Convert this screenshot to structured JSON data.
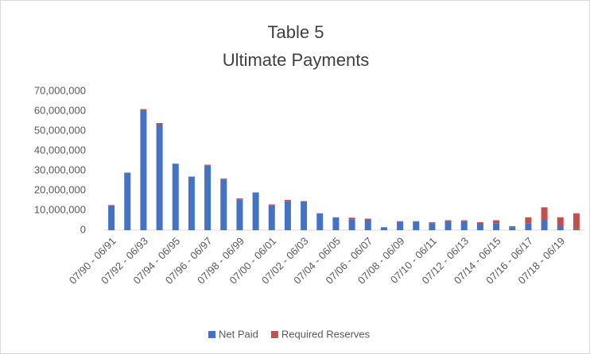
{
  "chart_data": {
    "type": "stacked_bar",
    "title": "Table 5",
    "subtitle": "Ultimate Payments",
    "categories": [
      "07/90 - 06/91",
      null,
      "07/92 - 06/93",
      null,
      "07/94 - 06/95",
      null,
      "07/96 - 06/97",
      null,
      "07/98 - 06/99",
      null,
      "07/00 - 06/01",
      null,
      "07/02 - 06/03",
      null,
      "07/04 - 06/05",
      null,
      "07/06 - 06/07",
      null,
      "07/08 - 06/09",
      null,
      "07/10 - 06/11",
      null,
      "07/12 - 06/13",
      null,
      "07/14 - 06/15",
      null,
      "07/16 - 06/17",
      null,
      "07/18 - 06/19",
      null
    ],
    "series": [
      {
        "name": "Net Paid",
        "color": "#4472c4",
        "values": [
          12500000,
          29000000,
          60000000,
          53000000,
          33500000,
          27000000,
          32500000,
          25500000,
          15500000,
          19000000,
          12500000,
          14500000,
          14500000,
          8500000,
          6500000,
          5500000,
          5000000,
          1500000,
          4000000,
          4000000,
          3500000,
          4000000,
          4500000,
          3000000,
          3500000,
          1500000,
          3500000,
          5000000,
          2000000,
          500000
        ]
      },
      {
        "name": "Required Reserves",
        "color": "#c0504d",
        "values": [
          200000,
          0,
          1000000,
          1000000,
          0,
          0,
          500000,
          500000,
          500000,
          0,
          500000,
          800000,
          200000,
          0,
          0,
          800000,
          800000,
          0,
          500000,
          500000,
          500000,
          1000000,
          500000,
          1000000,
          1500000,
          500000,
          3000000,
          6500000,
          4500000,
          8000000
        ]
      }
    ],
    "ylim": [
      0,
      70000000
    ],
    "yticks": [
      0,
      {
        "value": 10000000,
        "label": "10,000,000"
      },
      {
        "value": 20000000,
        "label": "20,000,000"
      },
      {
        "value": 30000000,
        "label": "30,000,000"
      },
      {
        "value": 40000000,
        "label": "40,000,000"
      },
      {
        "value": 50000000,
        "label": "50,000,000"
      },
      {
        "value": 60000000,
        "label": "60,000,000"
      },
      {
        "value": 70000000,
        "label": "70,000,000"
      }
    ],
    "grid": false,
    "legend": "bottom"
  }
}
